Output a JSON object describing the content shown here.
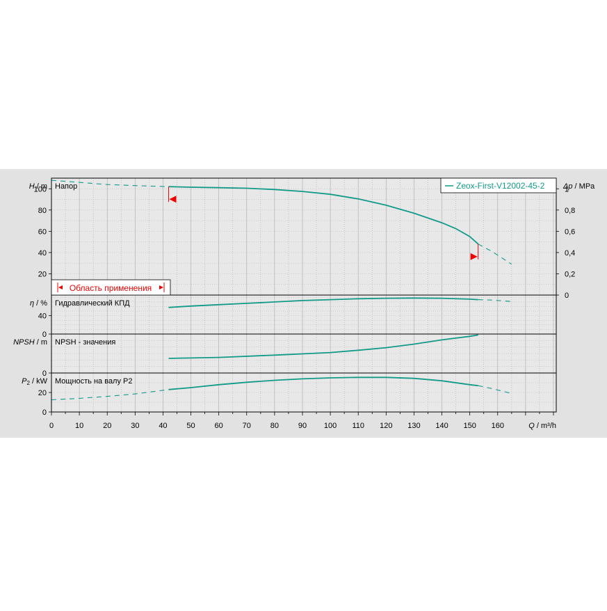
{
  "chart_data": {
    "type": "line",
    "series_name": "Zeox-First-V12002-45-2",
    "application_range_label": "Область применения",
    "operating_range": [
      42,
      153
    ],
    "x_axis": {
      "label_symbol": "Q",
      "label_unit": " / m³/h",
      "range": [
        0,
        181
      ],
      "ticks": [
        0,
        10,
        20,
        30,
        40,
        50,
        60,
        70,
        80,
        90,
        100,
        110,
        120,
        130,
        140,
        150,
        160
      ]
    },
    "panels": [
      {
        "id": "head",
        "title": "Напор",
        "ylabel_symbol": "H",
        "ylabel_unit": " / m",
        "range": [
          0,
          110
        ],
        "ticks": [
          20,
          40,
          60,
          80,
          100
        ],
        "right_axis": {
          "label_symbol": "Δp",
          "label_unit": " / MPa",
          "range": [
            0,
            1.1
          ],
          "ticks": [
            0,
            0.2,
            0.4,
            0.6,
            0.8,
            1
          ],
          "tick_labels": [
            "0",
            "0,2",
            "0,4",
            "0,6",
            "0,8",
            "1"
          ]
        },
        "curve": {
          "x": [
            0,
            10,
            20,
            30,
            42,
            50,
            60,
            70,
            80,
            90,
            100,
            110,
            120,
            130,
            140,
            145,
            150,
            153,
            158,
            165
          ],
          "y": [
            108,
            106,
            104,
            103,
            102,
            101.5,
            101,
            100.5,
            99.3,
            97.5,
            94.8,
            90.5,
            84.5,
            77,
            68,
            62.5,
            55,
            48,
            41,
            29
          ]
        }
      },
      {
        "id": "efficiency",
        "title": "Гидравлический КПД",
        "ylabel_symbol": "η",
        "ylabel_unit": " / %",
        "range": [
          0,
          85
        ],
        "ticks": [
          0,
          40
        ],
        "curve": {
          "x": [
            42,
            50,
            60,
            70,
            80,
            90,
            100,
            110,
            120,
            130,
            140,
            150,
            153,
            158,
            165
          ],
          "y": [
            58,
            61,
            64,
            67,
            70,
            73,
            75,
            77,
            78,
            78.5,
            78,
            76,
            75,
            74,
            71
          ]
        }
      },
      {
        "id": "npsh",
        "title": "NPSH - значения",
        "ylabel_symbol": "NPSH",
        "ylabel_unit": " / m",
        "range": [
          0,
          12
        ],
        "ticks": [
          0
        ],
        "curve": {
          "x": [
            42,
            60,
            80,
            100,
            110,
            120,
            130,
            140,
            150,
            153
          ],
          "y": [
            4.5,
            4.8,
            5.5,
            6.3,
            7,
            7.8,
            8.9,
            10.2,
            11.3,
            11.7
          ]
        }
      },
      {
        "id": "power",
        "title": "Мощность на валу P2",
        "ylabel_symbol": "P",
        "ylabel_sub": "2",
        "ylabel_unit": " / kW",
        "range": [
          0,
          40
        ],
        "ticks": [
          0,
          20
        ],
        "curve": {
          "x": [
            0,
            10,
            20,
            30,
            42,
            50,
            60,
            70,
            80,
            90,
            100,
            110,
            120,
            130,
            140,
            150,
            153,
            158,
            165
          ],
          "y": [
            12.5,
            14,
            16,
            18.5,
            23,
            25,
            28,
            30.5,
            32.5,
            34,
            35,
            35.5,
            35.5,
            34.5,
            32,
            28,
            27,
            24,
            19
          ]
        }
      }
    ]
  }
}
